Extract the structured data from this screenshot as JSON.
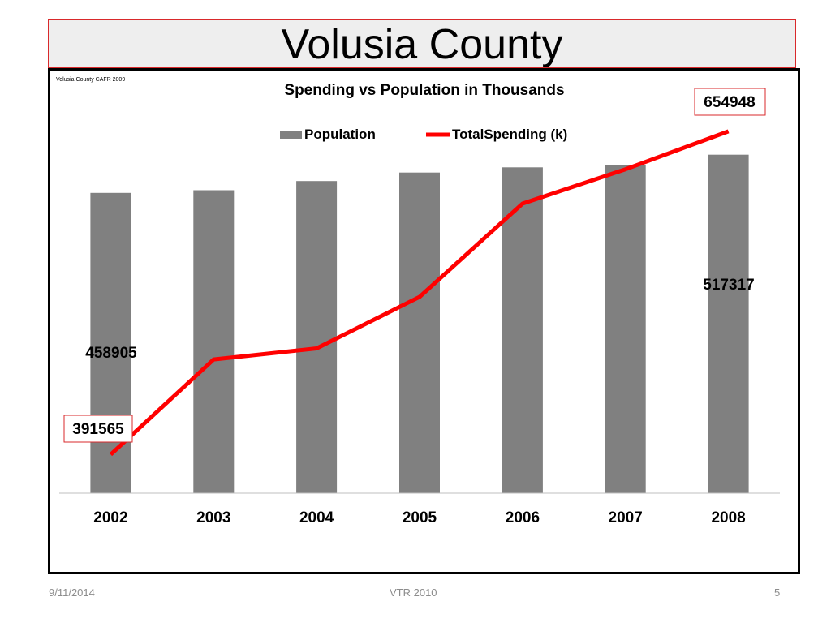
{
  "slide": {
    "title": "Volusia County"
  },
  "footer": {
    "date": "9/11/2014",
    "center": "VTR 2010",
    "page": "5"
  },
  "colors": {
    "bar": "#808080",
    "line": "#ff0000",
    "callout_border": "#d9292b",
    "axis": "#bfbfbf"
  },
  "chart_data": {
    "type": "bar",
    "title": "Spending vs Population in Thousands",
    "source_note": "Volusia County CAFR 2009",
    "legend_position": "top",
    "grid": false,
    "categories": [
      "2002",
      "2003",
      "2004",
      "2005",
      "2006",
      "2007",
      "2008"
    ],
    "series": [
      {
        "name": "Population",
        "kind": "bar",
        "values": [
          458905,
          463000,
          477000,
          490000,
          498000,
          501000,
          517317
        ]
      },
      {
        "name": "TotalSpending (k)",
        "kind": "line",
        "values": [
          391565,
          469000,
          478000,
          520000,
          596000,
          624000,
          654948
        ]
      }
    ],
    "data_labels": {
      "bar_first": "458905",
      "bar_last": "517317",
      "line_first": "391565",
      "line_last": "654948"
    },
    "ylim": [
      0,
      600000
    ],
    "y2lim": [
      360000,
      680000
    ]
  }
}
